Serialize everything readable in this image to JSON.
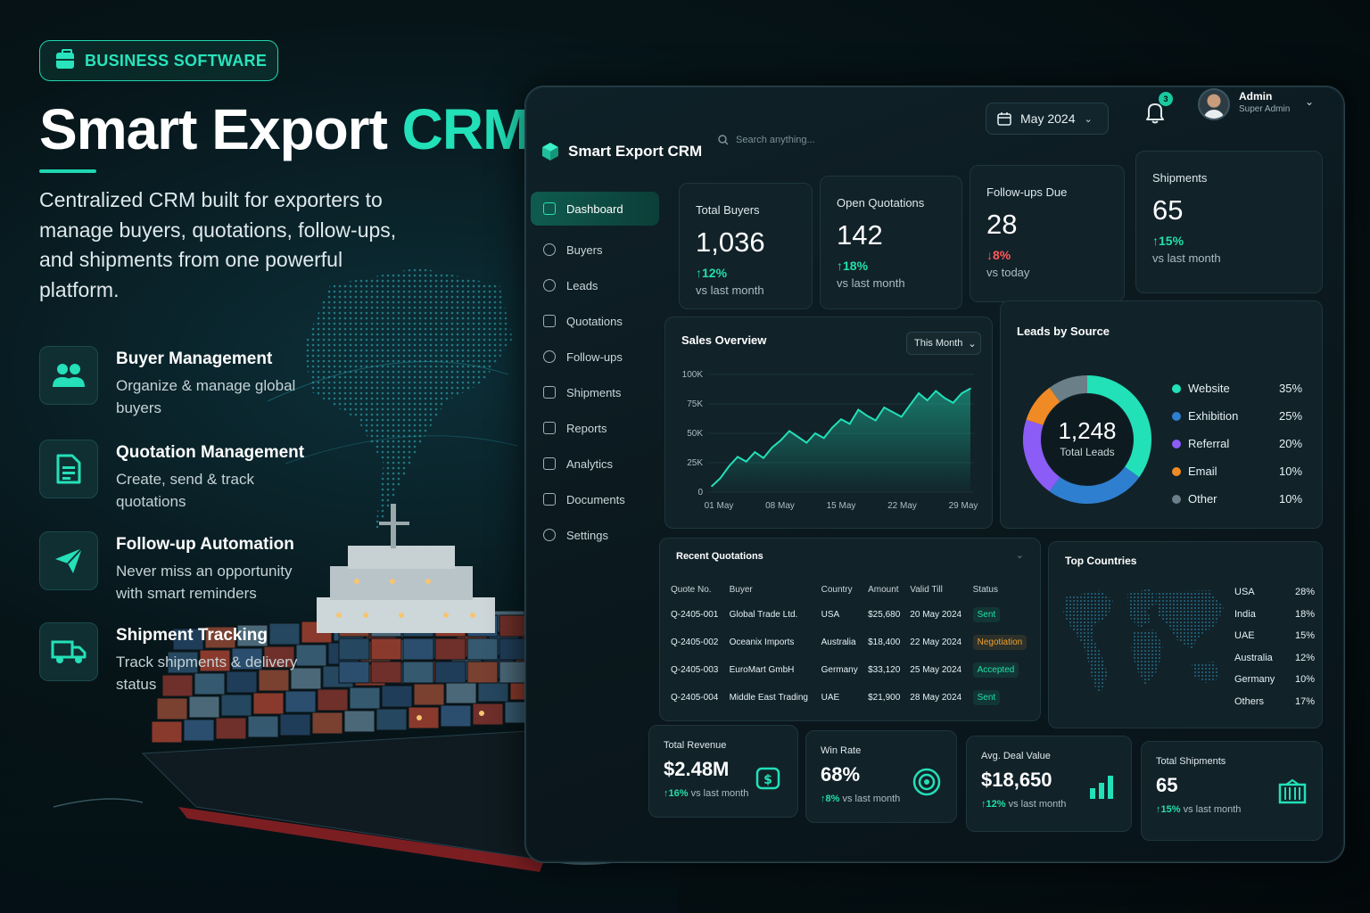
{
  "promo": {
    "badge": "BUSINESS SOFTWARE",
    "title_main": "Smart Export ",
    "title_accent": "CRM",
    "description": "Centralized CRM built for exporters to manage buyers, quotations, follow-ups, and shipments from one powerful platform.",
    "features": [
      {
        "title": "Buyer Management",
        "desc": "Organize & manage global buyers",
        "icon": "users-icon"
      },
      {
        "title": "Quotation Management",
        "desc": "Create, send & track quotations",
        "icon": "document-icon"
      },
      {
        "title": "Follow-up Automation",
        "desc": "Never miss an opportunity with smart reminders",
        "icon": "paper-plane-icon"
      },
      {
        "title": "Shipment Tracking",
        "desc": "Track shipments & delivery status",
        "icon": "truck-icon"
      }
    ],
    "accent_color": "#22e0b8"
  },
  "app": {
    "brand": "Smart Export CRM",
    "search_placeholder": "Search anything...",
    "date_filter": "May 2024",
    "notifications": "3",
    "user": {
      "name": "Admin",
      "role": "Super Admin"
    },
    "nav": [
      {
        "label": "Dashboard",
        "active": true,
        "icon": "dashboard-icon"
      },
      {
        "label": "Buyers",
        "active": false,
        "icon": "user-icon"
      },
      {
        "label": "Leads",
        "active": false,
        "icon": "user-icon"
      },
      {
        "label": "Quotations",
        "active": false,
        "icon": "file-icon"
      },
      {
        "label": "Follow-ups",
        "active": false,
        "icon": "clock-icon"
      },
      {
        "label": "Shipments",
        "active": false,
        "icon": "box-icon"
      },
      {
        "label": "Reports",
        "active": false,
        "icon": "report-icon"
      },
      {
        "label": "Analytics",
        "active": false,
        "icon": "chart-icon"
      },
      {
        "label": "Documents",
        "active": false,
        "icon": "doc-icon"
      },
      {
        "label": "Settings",
        "active": false,
        "icon": "gear-icon"
      }
    ]
  },
  "kpis": [
    {
      "label": "Total Buyers",
      "value": "1,036",
      "delta": "12%",
      "direction": "up",
      "sub": "vs last month"
    },
    {
      "label": "Open Quotations",
      "value": "142",
      "delta": "18%",
      "direction": "up",
      "sub": "vs last month"
    },
    {
      "label": "Follow-ups Due",
      "value": "28",
      "delta": "8%",
      "direction": "down",
      "sub": "vs today"
    },
    {
      "label": "Shipments",
      "value": "65",
      "delta": "15%",
      "direction": "up",
      "sub": "vs last month"
    }
  ],
  "sales_overview": {
    "title": "Sales Overview",
    "filter": "This Month",
    "chart_data": {
      "type": "area",
      "x_labels": [
        "01 May",
        "08 May",
        "15 May",
        "22 May",
        "29 May"
      ],
      "y_ticks": [
        "0",
        "25K",
        "50K",
        "75K",
        "100K"
      ],
      "ylim": [
        0,
        100000
      ],
      "values": [
        5000,
        12000,
        22000,
        30000,
        26000,
        34000,
        29000,
        38000,
        44000,
        52000,
        47000,
        42000,
        50000,
        46000,
        55000,
        62000,
        58000,
        70000,
        65000,
        61000,
        72000,
        68000,
        64000,
        74000,
        84000,
        78000,
        86000,
        80000,
        76000,
        84000,
        88000
      ],
      "color": "#22e0b8"
    }
  },
  "leads_by_source": {
    "title": "Leads by Source",
    "total": "1,248",
    "total_label": "Total Leads",
    "chart_data": {
      "type": "pie",
      "labels": [
        "Website",
        "Exhibition",
        "Referral",
        "Email",
        "Other"
      ],
      "values": [
        35,
        25,
        20,
        10,
        10
      ],
      "display": [
        "35%",
        "25%",
        "20%",
        "10%",
        "10%"
      ],
      "colors": [
        "#22e0b8",
        "#2f7fd0",
        "#8b5cf6",
        "#f08a24",
        "#6b7f88"
      ]
    }
  },
  "recent_quotations": {
    "title": "Recent Quotations",
    "columns": [
      "Quote No.",
      "Buyer",
      "Country",
      "Amount",
      "Valid Till",
      "Status"
    ],
    "rows": [
      {
        "quote": "Q-2405-001",
        "buyer": "Global Trade Ltd.",
        "country": "USA",
        "amount": "$25,680",
        "valid": "20 May 2024",
        "status": "Sent",
        "kind": "sent"
      },
      {
        "quote": "Q-2405-002",
        "buyer": "Oceanix Imports",
        "country": "Australia",
        "amount": "$18,400",
        "valid": "22 May 2024",
        "status": "Negotiation",
        "kind": "neg"
      },
      {
        "quote": "Q-2405-003",
        "buyer": "EuroMart GmbH",
        "country": "Germany",
        "amount": "$33,120",
        "valid": "25 May 2024",
        "status": "Accepted",
        "kind": "acc"
      },
      {
        "quote": "Q-2405-004",
        "buyer": "Middle East Trading",
        "country": "UAE",
        "amount": "$21,900",
        "valid": "28 May 2024",
        "status": "Sent",
        "kind": "sent"
      }
    ]
  },
  "top_countries": {
    "title": "Top Countries",
    "rows": [
      {
        "name": "USA",
        "value": "28%"
      },
      {
        "name": "India",
        "value": "18%"
      },
      {
        "name": "UAE",
        "value": "15%"
      },
      {
        "name": "Australia",
        "value": "12%"
      },
      {
        "name": "Germany",
        "value": "10%"
      },
      {
        "name": "Others",
        "value": "17%"
      }
    ]
  },
  "bottom_stats": [
    {
      "label": "Total Revenue",
      "value": "$2.48M",
      "delta": "16%",
      "sub": "vs last month",
      "icon": "money-bag-icon"
    },
    {
      "label": "Win Rate",
      "value": "68%",
      "delta": "8%",
      "sub": "vs last month",
      "icon": "target-icon"
    },
    {
      "label": "Avg. Deal Value",
      "value": "$18,650",
      "delta": "12%",
      "sub": "vs last month",
      "icon": "bar-chart-icon"
    },
    {
      "label": "Total Shipments",
      "value": "65",
      "delta": "15%",
      "sub": "vs last month",
      "icon": "container-icon"
    }
  ]
}
